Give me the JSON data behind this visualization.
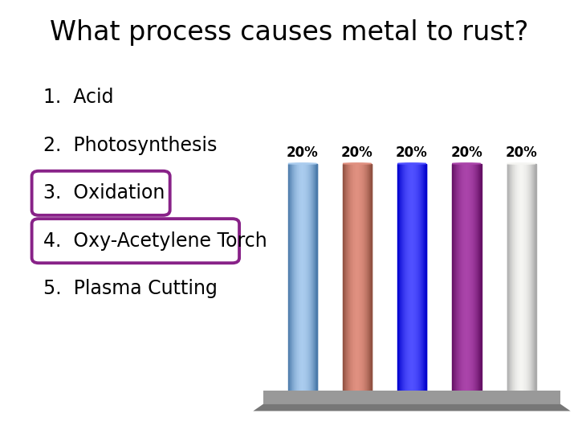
{
  "title": "What process causes metal to rust?",
  "title_fontsize": 24,
  "options": [
    "Acid",
    "Photosynthesis",
    "Oxidation",
    "Oxy-Acetylene Torch",
    "Plasma Cutting"
  ],
  "categories": [
    1,
    2,
    3,
    4,
    5
  ],
  "values": [
    20,
    20,
    20,
    20,
    20
  ],
  "bar_colors": [
    "#7aaaca",
    "#c07060",
    "#2020ee",
    "#882288",
    "#ddddd8"
  ],
  "bar_dark_colors": [
    "#4a7aaa",
    "#905040",
    "#0000cc",
    "#661166",
    "#aaaaaa"
  ],
  "bar_light_colors": [
    "#aaccee",
    "#e09080",
    "#5050ff",
    "#aa44aa",
    "#f5f5f2"
  ],
  "bar_width": 0.52,
  "value_labels": [
    "20%",
    "20%",
    "20%",
    "20%",
    "20%"
  ],
  "background_color": "#ffffff",
  "text_color": "#000000",
  "highlight_indices": [
    2,
    3
  ],
  "highlight_color": "#882288",
  "options_fontsize": 17,
  "label_fontsize": 12,
  "floor_color": "#999999",
  "ylim": [
    0,
    26
  ]
}
